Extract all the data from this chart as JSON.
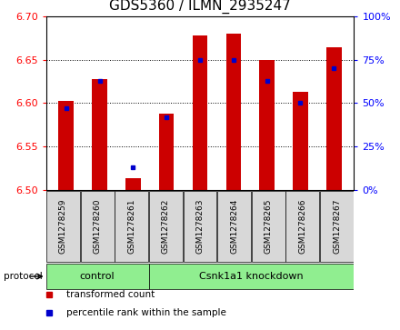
{
  "title": "GDS5360 / ILMN_2935247",
  "samples": [
    "GSM1278259",
    "GSM1278260",
    "GSM1278261",
    "GSM1278262",
    "GSM1278263",
    "GSM1278264",
    "GSM1278265",
    "GSM1278266",
    "GSM1278267"
  ],
  "red_values": [
    6.603,
    6.628,
    6.513,
    6.588,
    6.678,
    6.68,
    6.65,
    6.613,
    6.665
  ],
  "blue_percentiles": [
    47,
    63,
    13,
    42,
    75,
    75,
    63,
    50,
    70
  ],
  "ylim": [
    6.5,
    6.7
  ],
  "yticks_left": [
    6.5,
    6.55,
    6.6,
    6.65,
    6.7
  ],
  "yticks_right": [
    0,
    25,
    50,
    75,
    100
  ],
  "bar_bottom": 6.5,
  "bar_color": "#cc0000",
  "dot_color": "#0000cc",
  "bar_width": 0.45,
  "control_samples": 3,
  "control_label": "control",
  "knockdown_label": "Csnk1a1 knockdown",
  "protocol_label": "protocol",
  "legend1": "transformed count",
  "legend2": "percentile rank within the sample",
  "bg_color": "#d8d8d8",
  "green_color": "#90ee90",
  "title_fontsize": 11,
  "tick_fontsize": 8,
  "label_fontsize": 8
}
